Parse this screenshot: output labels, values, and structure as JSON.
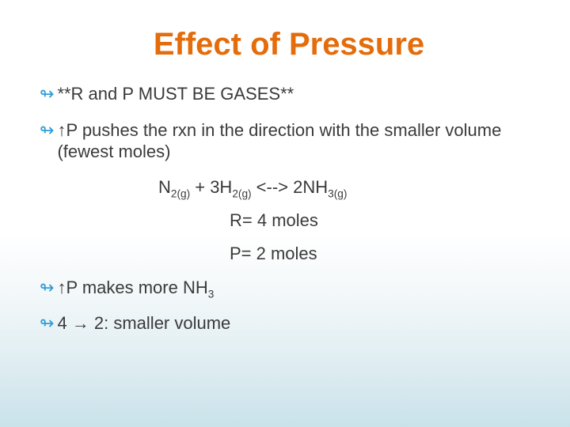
{
  "title": "Effect of Pressure",
  "colors": {
    "title": "#e46c0a",
    "bullet_icon": "#2f9ed8",
    "body_text": "#3a3a3a",
    "bg_top": "#ffffff",
    "bg_bottom": "#c9e2ea"
  },
  "typography": {
    "title_fontsize": 40,
    "body_fontsize": 22,
    "font_family": "Arial"
  },
  "bullets": {
    "b1": "**R and P MUST BE GASES**",
    "b2_pre_arrow": "",
    "b2_arrow": "↑",
    "b2_text": "P pushes the rxn in the direction with the smaller volume (fewest moles)",
    "b3_arrow": "↑",
    "b3_after": "P makes more NH",
    "b3_sub": "3",
    "b4": "4 → 2: smaller volume"
  },
  "equation": {
    "full_plain": "N2(g) + 3H2(g) <--> 2NH3(g)",
    "t1": "N",
    "s1": "2(g)",
    "t2": " + 3H",
    "s2": "2(g)",
    "t3": " <--> 2NH",
    "s3": "3(g)"
  },
  "rp": {
    "r": "R= 4 moles",
    "p": "P= 2 moles"
  },
  "glyphs": {
    "bullet": "↬",
    "right_arrow": "→",
    "up_arrow": "↑"
  }
}
